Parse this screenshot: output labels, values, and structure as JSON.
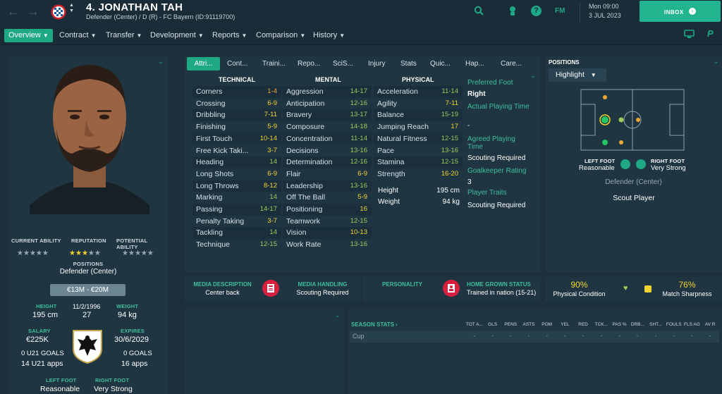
{
  "header": {
    "player_name": "4. JONATHAN TAH",
    "subtitle": "Defender (Center) / D (R) - FC Bayern (ID:91119700)",
    "date_line1": "Mon 09:00",
    "date_line2": "3 JUL 2023",
    "fm_label": "FM",
    "inbox_label": "INBOX"
  },
  "nav": {
    "items": [
      "Overview",
      "Contract",
      "Transfer",
      "Development",
      "Reports",
      "Comparison",
      "History"
    ]
  },
  "profile": {
    "current_ability_label": "CURRENT ABILITY",
    "reputation_label": "REPUTATION",
    "potential_ability_label": "POTENTIAL ABILITY",
    "reputation_stars": 3,
    "positions_label": "POSITIONS",
    "position": "Defender (Center)",
    "value_range": "€13M - €20M",
    "height_label": "HEIGHT",
    "height": "195 cm",
    "dob": "11/2/1996",
    "age": "27",
    "weight_label": "WEIGHT",
    "weight": "94 kg",
    "salary_label": "SALARY",
    "salary": "€225K",
    "expires_label": "EXPIRES",
    "expires": "30/6/2029",
    "u21_goals": "0 U21 GOALS",
    "u21_apps": "14 U21 apps",
    "goals": "0 GOALS",
    "apps": "16 apps",
    "left_foot_label": "LEFT FOOT",
    "left_foot": "Reasonable",
    "right_foot_label": "RIGHT FOOT",
    "right_foot": "Very Strong"
  },
  "tabs": [
    "Attri...",
    "Cont...",
    "Traini...",
    "Repo...",
    "SciS...",
    "Injury",
    "Stats",
    "Quic...",
    "Hap...",
    "Care..."
  ],
  "attributes": {
    "technical_header": "TECHNICAL",
    "mental_header": "MENTAL",
    "physical_header": "PHYSICAL",
    "technical": [
      {
        "name": "Corners",
        "value": "1-4",
        "color": "#f0a830"
      },
      {
        "name": "Crossing",
        "value": "6-9",
        "color": "#f4d530"
      },
      {
        "name": "Dribbling",
        "value": "7-11",
        "color": "#f4d530"
      },
      {
        "name": "Finishing",
        "value": "5-9",
        "color": "#f4d530"
      },
      {
        "name": "First Touch",
        "value": "10-14",
        "color": "#f4d530"
      },
      {
        "name": "Free Kick Taki...",
        "value": "3-7",
        "color": "#f4d530"
      },
      {
        "name": "Heading",
        "value": "14",
        "color": "#9ccc5a"
      },
      {
        "name": "Long Shots",
        "value": "6-9",
        "color": "#f4d530"
      },
      {
        "name": "Long Throws",
        "value": "8-12",
        "color": "#f4d530"
      },
      {
        "name": "Marking",
        "value": "14",
        "color": "#9ccc5a"
      },
      {
        "name": "Passing",
        "value": "14-17",
        "color": "#9ccc5a"
      },
      {
        "name": "Penalty Taking",
        "value": "3-7",
        "color": "#f4d530"
      },
      {
        "name": "Tackling",
        "value": "14",
        "color": "#9ccc5a"
      },
      {
        "name": "Technique",
        "value": "12-15",
        "color": "#9ccc5a"
      }
    ],
    "mental": [
      {
        "name": "Aggression",
        "value": "14-17",
        "color": "#9ccc5a"
      },
      {
        "name": "Anticipation",
        "value": "12-16",
        "color": "#9ccc5a"
      },
      {
        "name": "Bravery",
        "value": "13-17",
        "color": "#9ccc5a"
      },
      {
        "name": "Composure",
        "value": "14-18",
        "color": "#9ccc5a"
      },
      {
        "name": "Concentration",
        "value": "11-14",
        "color": "#9ccc5a"
      },
      {
        "name": "Decisions",
        "value": "13-16",
        "color": "#9ccc5a"
      },
      {
        "name": "Determination",
        "value": "12-16",
        "color": "#9ccc5a"
      },
      {
        "name": "Flair",
        "value": "6-9",
        "color": "#f4d530"
      },
      {
        "name": "Leadership",
        "value": "13-16",
        "color": "#9ccc5a"
      },
      {
        "name": "Off The Ball",
        "value": "5-9",
        "color": "#f4d530"
      },
      {
        "name": "Positioning",
        "value": "16",
        "color": "#f4d530"
      },
      {
        "name": "Teamwork",
        "value": "12-15",
        "color": "#9ccc5a"
      },
      {
        "name": "Vision",
        "value": "10-13",
        "color": "#f4d530"
      },
      {
        "name": "Work Rate",
        "value": "13-16",
        "color": "#9ccc5a"
      }
    ],
    "physical": [
      {
        "name": "Acceleration",
        "value": "11-14",
        "color": "#9ccc5a"
      },
      {
        "name": "Agility",
        "value": "7-11",
        "color": "#f4d530"
      },
      {
        "name": "Balance",
        "value": "15-19",
        "color": "#9ccc5a"
      },
      {
        "name": "Jumping Reach",
        "value": "17",
        "color": "#f4d530"
      },
      {
        "name": "Natural Fitness",
        "value": "12-15",
        "color": "#9ccc5a"
      },
      {
        "name": "Pace",
        "value": "13-16",
        "color": "#9ccc5a"
      },
      {
        "name": "Stamina",
        "value": "12-15",
        "color": "#9ccc5a"
      },
      {
        "name": "Strength",
        "value": "16-20",
        "color": "#f4d530"
      }
    ],
    "height_label": "Height",
    "height": "195 cm",
    "weight_label": "Weight",
    "weight": "94 kg"
  },
  "side_info": {
    "preferred_foot_label": "Preferred Foot",
    "preferred_foot": "Right",
    "actual_playing_time_label": "Actual Playing Time",
    "actual_playing_time": "-",
    "agreed_playing_time_label": "Agreed Playing Time",
    "agreed_playing_time": "Scouting Required",
    "goalkeeper_rating_label": "Goalkeeper Rating",
    "goalkeeper_rating": "3",
    "player_traits_label": "Player Traits",
    "player_traits": "Scouting Required"
  },
  "positions_panel": {
    "title": "POSITIONS",
    "dropdown": "Highlight",
    "left_foot_label": "LEFT FOOT",
    "left_foot": "Reasonable",
    "right_foot_label": "RIGHT FOOT",
    "right_foot": "Very Strong",
    "position_name": "Defender (Center)",
    "scout_button": "Scout Player"
  },
  "media": {
    "description_label": "MEDIA DESCRIPTION",
    "description": "Center back",
    "handling_label": "MEDIA HANDLING",
    "handling": "Scouting Required",
    "personality_label": "PERSONALITY",
    "home_grown_label": "HOME GROWN STATUS",
    "home_grown": "Trained in nation (15-21)"
  },
  "condition": {
    "physical_value": "90%",
    "physical_label": "Physical Condition",
    "sharpness_value": "76%",
    "sharpness_label": "Match Sharpness"
  },
  "season_stats": {
    "title": "SEASON STATS",
    "columns": [
      "TOT A...",
      "GLS",
      "PENS",
      "ASTS",
      "POM",
      "YEL",
      "RED",
      "TCK...",
      "PAS %",
      "DRB...",
      "SHT...",
      "FOULS",
      "FLS AG",
      "AV R"
    ],
    "rows": [
      {
        "competition": "Cup",
        "values": [
          "-",
          "-",
          "-",
          "-",
          "-",
          "-",
          "-",
          "-",
          "-",
          "-",
          "-",
          "-",
          "-",
          "-"
        ]
      }
    ]
  },
  "colors": {
    "accent": "#1fa884",
    "background": "#1c2f3b",
    "panel": "#1f3542"
  }
}
